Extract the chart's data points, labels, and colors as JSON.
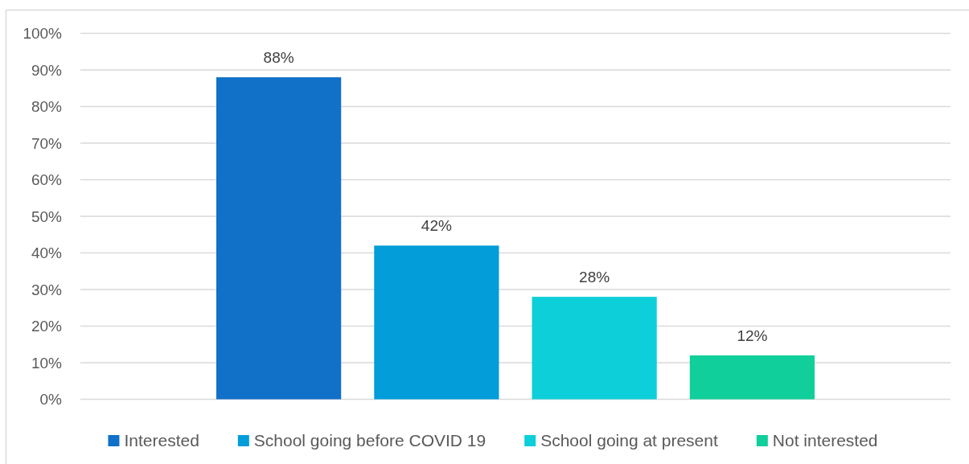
{
  "chart_data": {
    "type": "bar",
    "categories": [
      null
    ],
    "series": [
      {
        "name": "Interested",
        "color": "#1170c8",
        "values": [
          88
        ],
        "value_labels": [
          "88%"
        ]
      },
      {
        "name": "School going before COVID 19",
        "color": "#039dd9",
        "values": [
          42
        ],
        "value_labels": [
          "42%"
        ]
      },
      {
        "name": "School going at present",
        "color": "#0dcfd9",
        "values": [
          28
        ],
        "value_labels": [
          "28%"
        ]
      },
      {
        "name": "Not interested",
        "color": "#10cf9b",
        "values": [
          12
        ],
        "value_labels": [
          "12%"
        ]
      }
    ],
    "ylim": [
      0,
      100
    ],
    "yticks": [
      {
        "value": 0,
        "label": "0%"
      },
      {
        "value": 10,
        "label": "10%"
      },
      {
        "value": 20,
        "label": "20%"
      },
      {
        "value": 30,
        "label": "30%"
      },
      {
        "value": 40,
        "label": "40%"
      },
      {
        "value": 50,
        "label": "50%"
      },
      {
        "value": 60,
        "label": "60%"
      },
      {
        "value": 70,
        "label": "70%"
      },
      {
        "value": 80,
        "label": "80%"
      },
      {
        "value": 90,
        "label": "90%"
      },
      {
        "value": 100,
        "label": "100%"
      }
    ],
    "grid": "y",
    "legend": "bottom"
  }
}
